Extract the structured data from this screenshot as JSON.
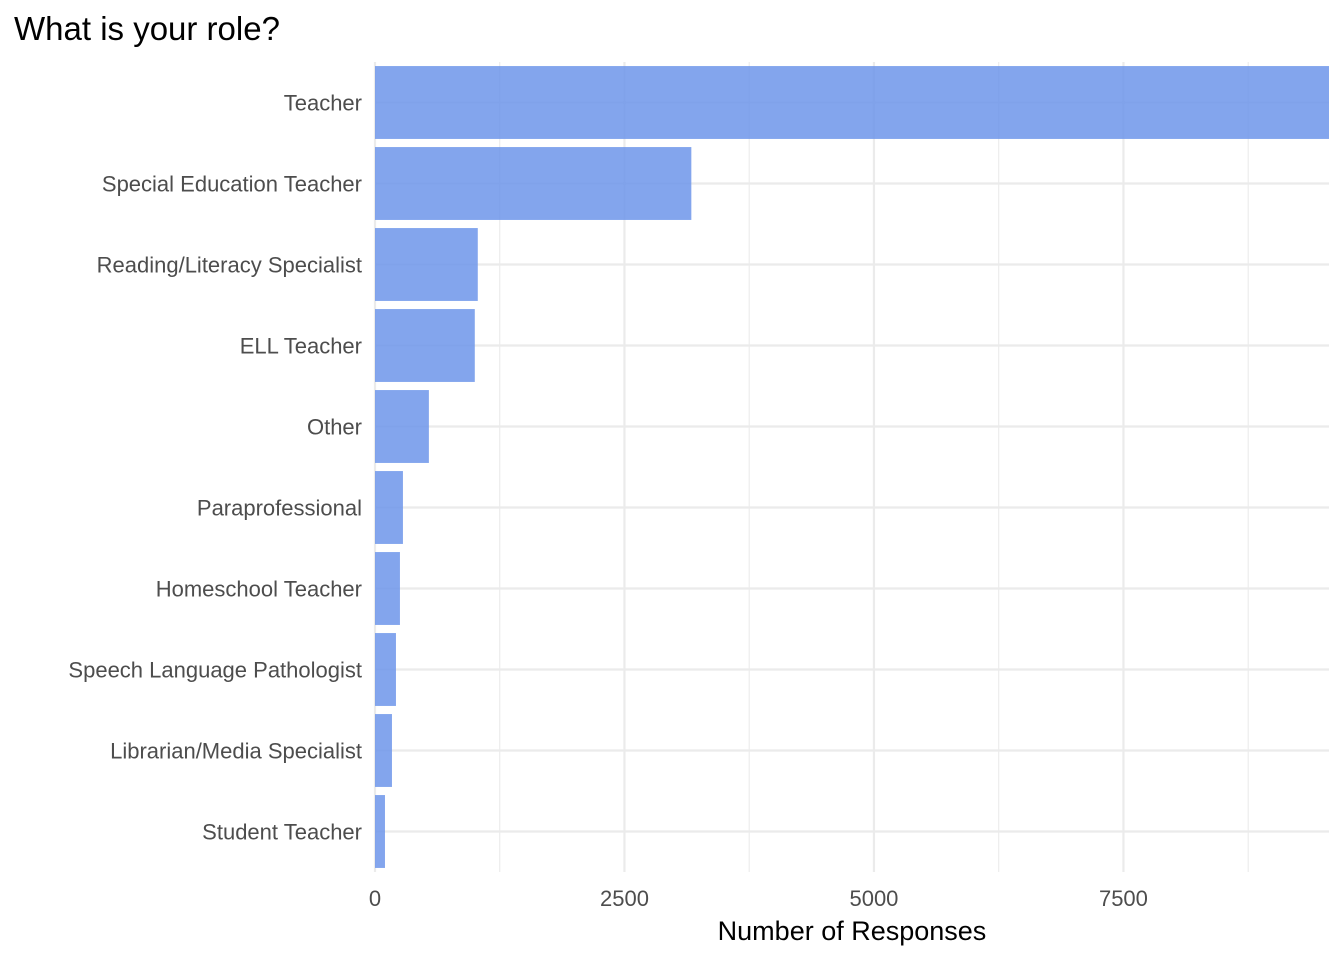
{
  "chart_data": {
    "type": "bar",
    "orientation": "horizontal",
    "title": "What is your role?",
    "xlabel": "Number of Responses",
    "ylabel": "",
    "categories": [
      "Teacher",
      "Special Education Teacher",
      "Reading/Literacy Specialist",
      "ELL Teacher",
      "Other",
      "Paraprofessional",
      "Homeschool Teacher",
      "Speech Language Pathologist",
      "Librarian/Media Specialist",
      "Student Teacher"
    ],
    "values": [
      9600,
      3170,
      1030,
      1000,
      540,
      280,
      250,
      210,
      170,
      100
    ],
    "xlim": [
      0,
      9560
    ],
    "xticks": [
      0,
      2500,
      5000,
      7500
    ],
    "xtick_labels": [
      "0",
      "2500",
      "5000",
      "7500"
    ],
    "grid": true,
    "bar_color": "#6d95ea"
  }
}
